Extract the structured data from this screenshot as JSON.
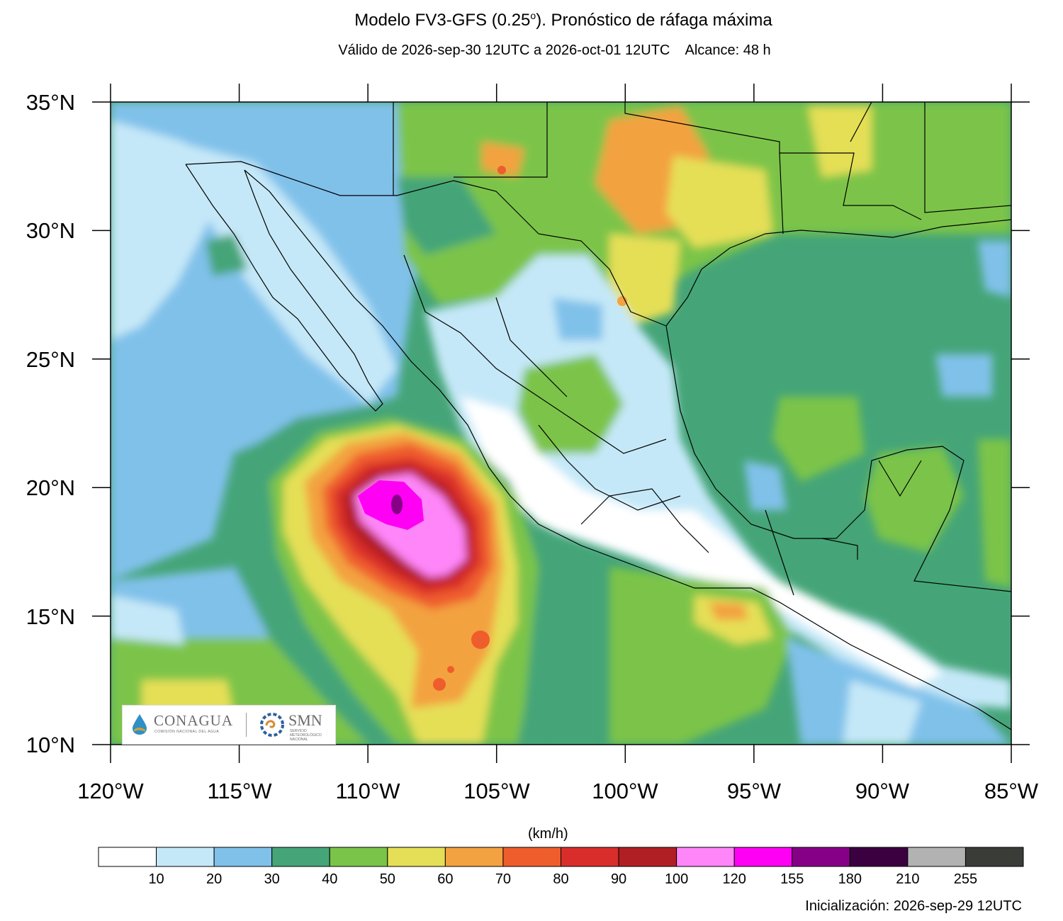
{
  "title": {
    "text": "Modelo FV3-GFS (0.25",
    "degree": "o",
    "text_end": "). Pronóstico de ráfaga máxima"
  },
  "subtitle": "Válido de 2026-sep-30 12UTC a 2026-oct-01 12UTC    Alcance: 48 h",
  "map": {
    "lon_range": [
      -120,
      -85
    ],
    "lat_range": [
      10,
      35
    ],
    "lat_labels": [
      "10°N",
      "15°N",
      "20°N",
      "25°N",
      "30°N",
      "35°N"
    ],
    "lon_labels": [
      "120°W",
      "115°W",
      "110°W",
      "105°W",
      "100°W",
      "95°W",
      "90°W",
      "85°W"
    ],
    "background_field": "gust-kmh"
  },
  "colorbar": {
    "units": "(km/h)",
    "labels": [
      "10",
      "20",
      "30",
      "40",
      "50",
      "60",
      "70",
      "80",
      "90",
      "100",
      "120",
      "155",
      "180",
      "210",
      "255"
    ],
    "colors": [
      "#ffffff",
      "#c5e8f8",
      "#80c1ea",
      "#45a578",
      "#7bc44a",
      "#e5df57",
      "#f3a241",
      "#ef5d2d",
      "#d92d2b",
      "#b01f24",
      "#ff86f9",
      "#fe00f3",
      "#860087",
      "#3b003f",
      "#b2b2b2",
      "#3a3c38"
    ]
  },
  "logos": {
    "org1": "CONAGUA",
    "org1_sub": "COMISIÓN NACIONAL DEL AGUA",
    "org2": "SMN",
    "org2_sub": "SERVICIO METEOROLÓGICO NACIONAL"
  },
  "init": "Inicialización: 2026-sep-29 12UTC"
}
